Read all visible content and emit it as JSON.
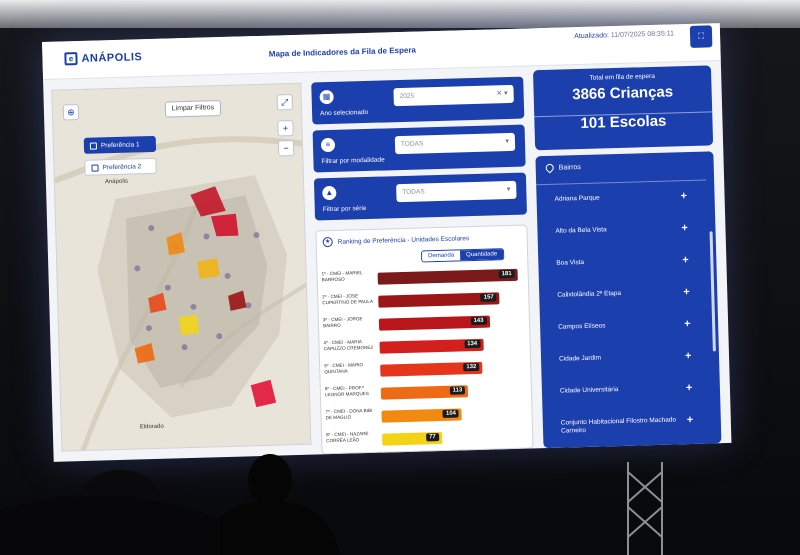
{
  "header": {
    "logo": "ANÁPOLIS",
    "title": "Mapa de Indicadores da Fila de Espera",
    "updated_label": "Atualizado:",
    "updated_value": "11/07/2025 08:35:11"
  },
  "map": {
    "clear_filters": "Limpar Filtros",
    "preferences": [
      "Preferência 1",
      "Preferência 2"
    ],
    "place_labels": [
      "Anápolis",
      "Eldorado"
    ]
  },
  "filters": [
    {
      "label": "Ano selecionado",
      "value": "2025",
      "icon": "calendar-icon"
    },
    {
      "label": "Filtrar por modalidade",
      "value": "TODAS",
      "icon": "list-icon"
    },
    {
      "label": "Filtrar por série",
      "value": "TODAS",
      "icon": "cap-icon"
    }
  ],
  "ranking": {
    "title": "Ranking de Preferência - Unidades Escolares",
    "toggle": [
      "Demanda",
      "Quantidade"
    ],
    "rows": [
      {
        "label": "1º - CMEI - MARIEL BARROSO",
        "value": 181,
        "color": "#7a1a1a"
      },
      {
        "label": "2º - CMEI - JOSÉ CUPERTINO DE PAULA",
        "value": 157,
        "color": "#9b1616"
      },
      {
        "label": "3º - CMEI - JORGE BAIRRO",
        "value": 143,
        "color": "#b8161a"
      },
      {
        "label": "4º - CMEI - MARIA CAPUZZO CREMONEZ",
        "value": 134,
        "color": "#d4201c"
      },
      {
        "label": "5º - CMEI - MÁRIO QUINTANA",
        "value": 132,
        "color": "#e5361c"
      },
      {
        "label": "6º - CMEI - PROF.ª LEONOR MARQUES",
        "value": 113,
        "color": "#ef6a14"
      },
      {
        "label": "7º - CMEI - DONA BIBI DE MAGLIO",
        "value": 104,
        "color": "#f28a12"
      },
      {
        "label": "8º - CMEI - NAZARÉ CORRÊA LEÃO",
        "value": 77,
        "color": "#f4d317"
      }
    ]
  },
  "totals": {
    "label": "Total em fila de espera",
    "children": "3866 Crianças",
    "schools": "101 Escolas"
  },
  "bairros": {
    "title": "Bairros",
    "items": [
      "Adriana Parque",
      "Alto da Bela Vista",
      "Boa Vista",
      "Calixtolândia 2ª Etapa",
      "Campos Elíseos",
      "Cidade Jardim",
      "Cidade Universitária",
      "Conjunto Habitacional Filostro Machado Carneiro"
    ]
  },
  "colors": {
    "primary": "#1c3fae",
    "background": "#f3f4f7"
  }
}
